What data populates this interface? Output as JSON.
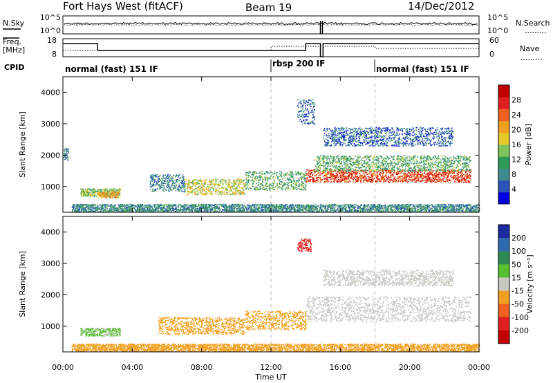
{
  "header": {
    "station": "Fort Hays West (fitACF)",
    "beam": "Beam 19",
    "date": "14/Dec/2012"
  },
  "labels": {
    "nsky": "N.Sky",
    "nsearch": "N.Search",
    "freq_line1": "Freq.",
    "freq_line2": "[MHz]",
    "nave": "Nave",
    "cpid": "CPID"
  },
  "noise_axis": {
    "left_ticks": [
      "10^5",
      "10^0"
    ],
    "right_ticks": [
      "10^5",
      "10^0"
    ]
  },
  "freq_axis": {
    "left_ticks": [
      "18",
      "8"
    ],
    "right_ticks": [
      "60",
      "0"
    ]
  },
  "modes": [
    {
      "name": "normal (fast) 151 IF",
      "start_hour": 0
    },
    {
      "name": "rbsp 200 IF",
      "start_hour": 12
    },
    {
      "name": "normal (fast) 151 IF",
      "start_hour": 18
    }
  ],
  "chart_data": [
    {
      "type": "heatmap",
      "panel": "power",
      "xlabel": "",
      "ylabel": "Slant Range [km]",
      "xlim": [
        0,
        24
      ],
      "ylim": [
        180,
        4500
      ],
      "yticks": [
        1000,
        2000,
        3000,
        4000
      ],
      "colorbar": {
        "label": "Power [dB]",
        "range": [
          0,
          32
        ],
        "ticks": [
          "4",
          "8",
          "12",
          "16",
          "20",
          "24",
          "28"
        ],
        "colors": [
          "#0000e0",
          "#2a52b8",
          "#3f8a8f",
          "#2e9a55",
          "#7fc45a",
          "#e6c82a",
          "#f0a020",
          "#f06020",
          "#e02020",
          "#c00000"
        ]
      },
      "scatter_bands": [
        {
          "t": [
            0.0,
            0.3
          ],
          "range": [
            1850,
            2250
          ],
          "level": 8
        },
        {
          "t": [
            1.0,
            3.3
          ],
          "range": [
            700,
            950
          ],
          "level": 14
        },
        {
          "t": [
            2.0,
            3.2
          ],
          "range": [
            650,
            850
          ],
          "level": 20
        },
        {
          "t": [
            5.0,
            7.0
          ],
          "range": [
            850,
            1400
          ],
          "level": 8
        },
        {
          "t": [
            7.0,
            10.5
          ],
          "range": [
            750,
            1250
          ],
          "level": 17
        },
        {
          "t": [
            10.5,
            14.0
          ],
          "range": [
            900,
            1500
          ],
          "level": 12
        },
        {
          "t": [
            14.0,
            23.5
          ],
          "range": [
            1150,
            1550
          ],
          "level": 26
        },
        {
          "t": [
            14.5,
            23.5
          ],
          "range": [
            1500,
            2000
          ],
          "level": 12
        },
        {
          "t": [
            15.0,
            22.5
          ],
          "range": [
            2300,
            2900
          ],
          "level": 6
        },
        {
          "t": [
            13.5,
            14.5
          ],
          "range": [
            3000,
            3800
          ],
          "level": 6
        },
        {
          "t": [
            0.5,
            24.0
          ],
          "range": [
            200,
            450
          ],
          "level": 9
        }
      ]
    },
    {
      "type": "heatmap",
      "panel": "velocity",
      "xlabel": "Time UT",
      "ylabel": "Slant Range [km]",
      "xlim": [
        0,
        24
      ],
      "ylim": [
        180,
        4500
      ],
      "yticks": [
        1000,
        2000,
        3000,
        4000
      ],
      "xticks": [
        "00:00",
        "04:00",
        "08:00",
        "12:00",
        "16:00",
        "20:00",
        "00:00"
      ],
      "colorbar": {
        "label": "Velocity [m s⁻¹]",
        "range": [
          -250,
          250
        ],
        "ticks": [
          "200",
          "100",
          "50",
          "15",
          "-15",
          "-50",
          "-100",
          "-200"
        ],
        "colors": [
          "#1a2a9a",
          "#2e6ab0",
          "#2e8a55",
          "#55c030",
          "#c8c8c0",
          "#f0a020",
          "#f06020",
          "#e02020",
          "#c00000"
        ]
      },
      "scatter_bands": [
        {
          "t": [
            1.0,
            3.3
          ],
          "range": [
            700,
            950
          ],
          "level": 30
        },
        {
          "t": [
            5.5,
            10.5
          ],
          "range": [
            750,
            1300
          ],
          "level": -35
        },
        {
          "t": [
            10.5,
            14.0
          ],
          "range": [
            900,
            1500
          ],
          "level": -35
        },
        {
          "t": [
            14.0,
            23.5
          ],
          "range": [
            1150,
            1950
          ],
          "level": 0
        },
        {
          "t": [
            15.0,
            22.5
          ],
          "range": [
            2300,
            2800
          ],
          "level": 0
        },
        {
          "t": [
            13.5,
            14.3
          ],
          "range": [
            3400,
            3800
          ],
          "level": -150
        },
        {
          "t": [
            0.5,
            24.0
          ],
          "range": [
            200,
            450
          ],
          "level": -40
        }
      ]
    }
  ]
}
